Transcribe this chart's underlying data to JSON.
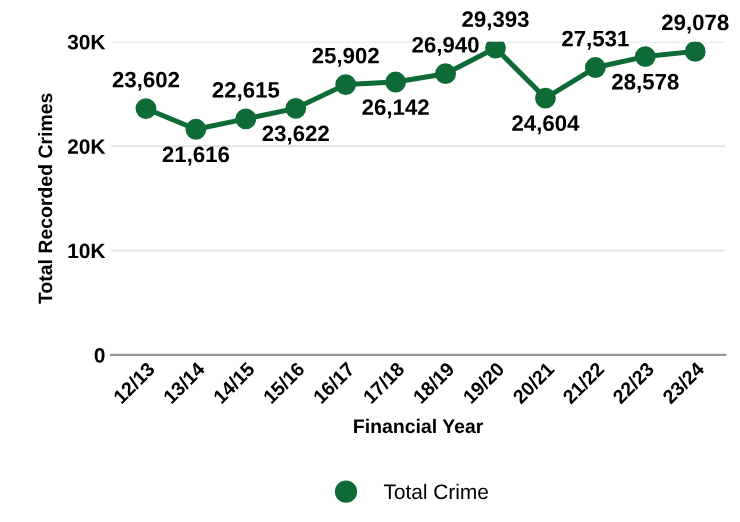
{
  "chart_data": {
    "type": "line",
    "xlabel": "Financial Year",
    "ylabel": "Total Recorded Crimes",
    "categories": [
      "12/13",
      "13/14",
      "14/15",
      "15/16",
      "16/17",
      "17/18",
      "18/19",
      "19/20",
      "20/21",
      "21/22",
      "22/23",
      "23/24"
    ],
    "series": [
      {
        "name": "Total Crime",
        "color": "#0e6b35",
        "values": [
          23602,
          21616,
          22615,
          23622,
          25902,
          26142,
          26940,
          29393,
          24604,
          27531,
          28578,
          29078
        ],
        "value_labels": [
          "23,602",
          "21,616",
          "22,615",
          "23,622",
          "25,902",
          "26,142",
          "26,940",
          "29,393",
          "24,604",
          "27,531",
          "28,578",
          "29,078"
        ]
      }
    ],
    "ylim": [
      0,
      30000
    ],
    "yticks": [
      {
        "value": 0,
        "label": "0"
      },
      {
        "value": 10000,
        "label": "10K"
      },
      {
        "value": 20000,
        "label": "20K"
      },
      {
        "value": 30000,
        "label": "30K"
      }
    ],
    "grid": "y",
    "legend": "bottom",
    "marker": "circle",
    "line_style": "solid"
  }
}
